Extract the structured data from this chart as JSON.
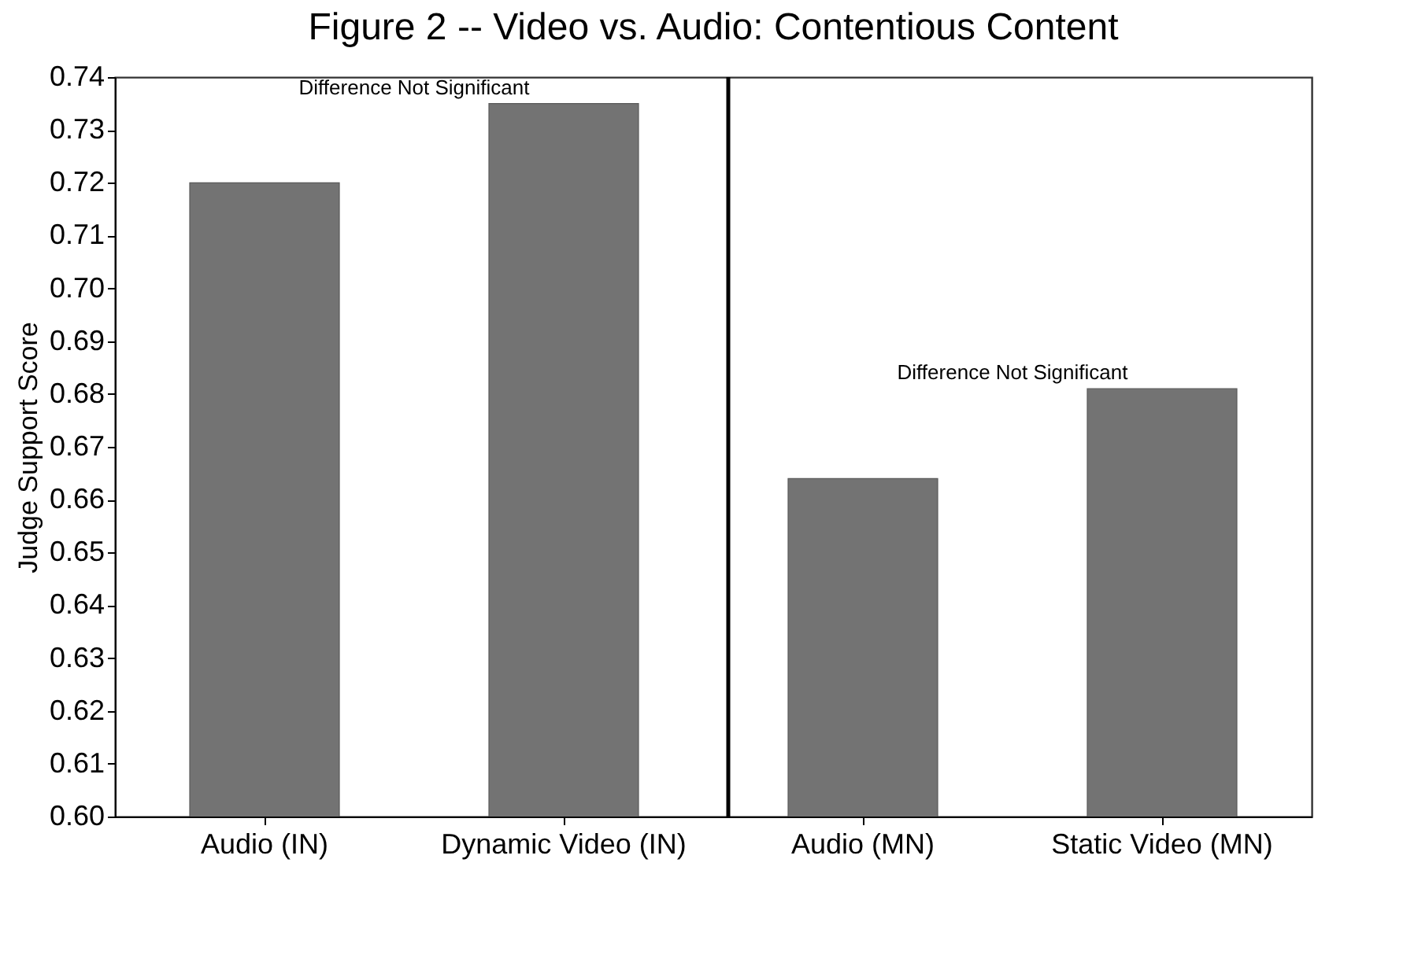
{
  "chart_data": {
    "type": "bar",
    "title": "Figure 2 -- Video vs. Audio: Contentious Content",
    "ylabel": "Judge Support Score",
    "categories": [
      "Audio (IN)",
      "Dynamic Video (IN)",
      "Audio (MN)",
      "Static Video (MN)"
    ],
    "values": [
      0.72,
      0.735,
      0.664,
      0.681
    ],
    "color": "#737373",
    "ylim": [
      0.6,
      0.74
    ],
    "yticks": [
      {
        "value": 0.6,
        "label": "0.60"
      },
      0.61,
      0.62,
      0.63,
      0.64,
      0.65,
      0.66,
      0.67,
      0.68,
      0.69,
      {
        "value": 0.7,
        "label": "0.70"
      },
      0.71,
      0.72,
      0.73,
      0.74
    ],
    "ref_lines": [
      {
        "axis": "x",
        "value": "Audio (MN)",
        "color": "#000000"
      }
    ],
    "annotations": [
      "Difference Not Significant",
      "Difference Not Significant"
    ],
    "grid": false
  }
}
